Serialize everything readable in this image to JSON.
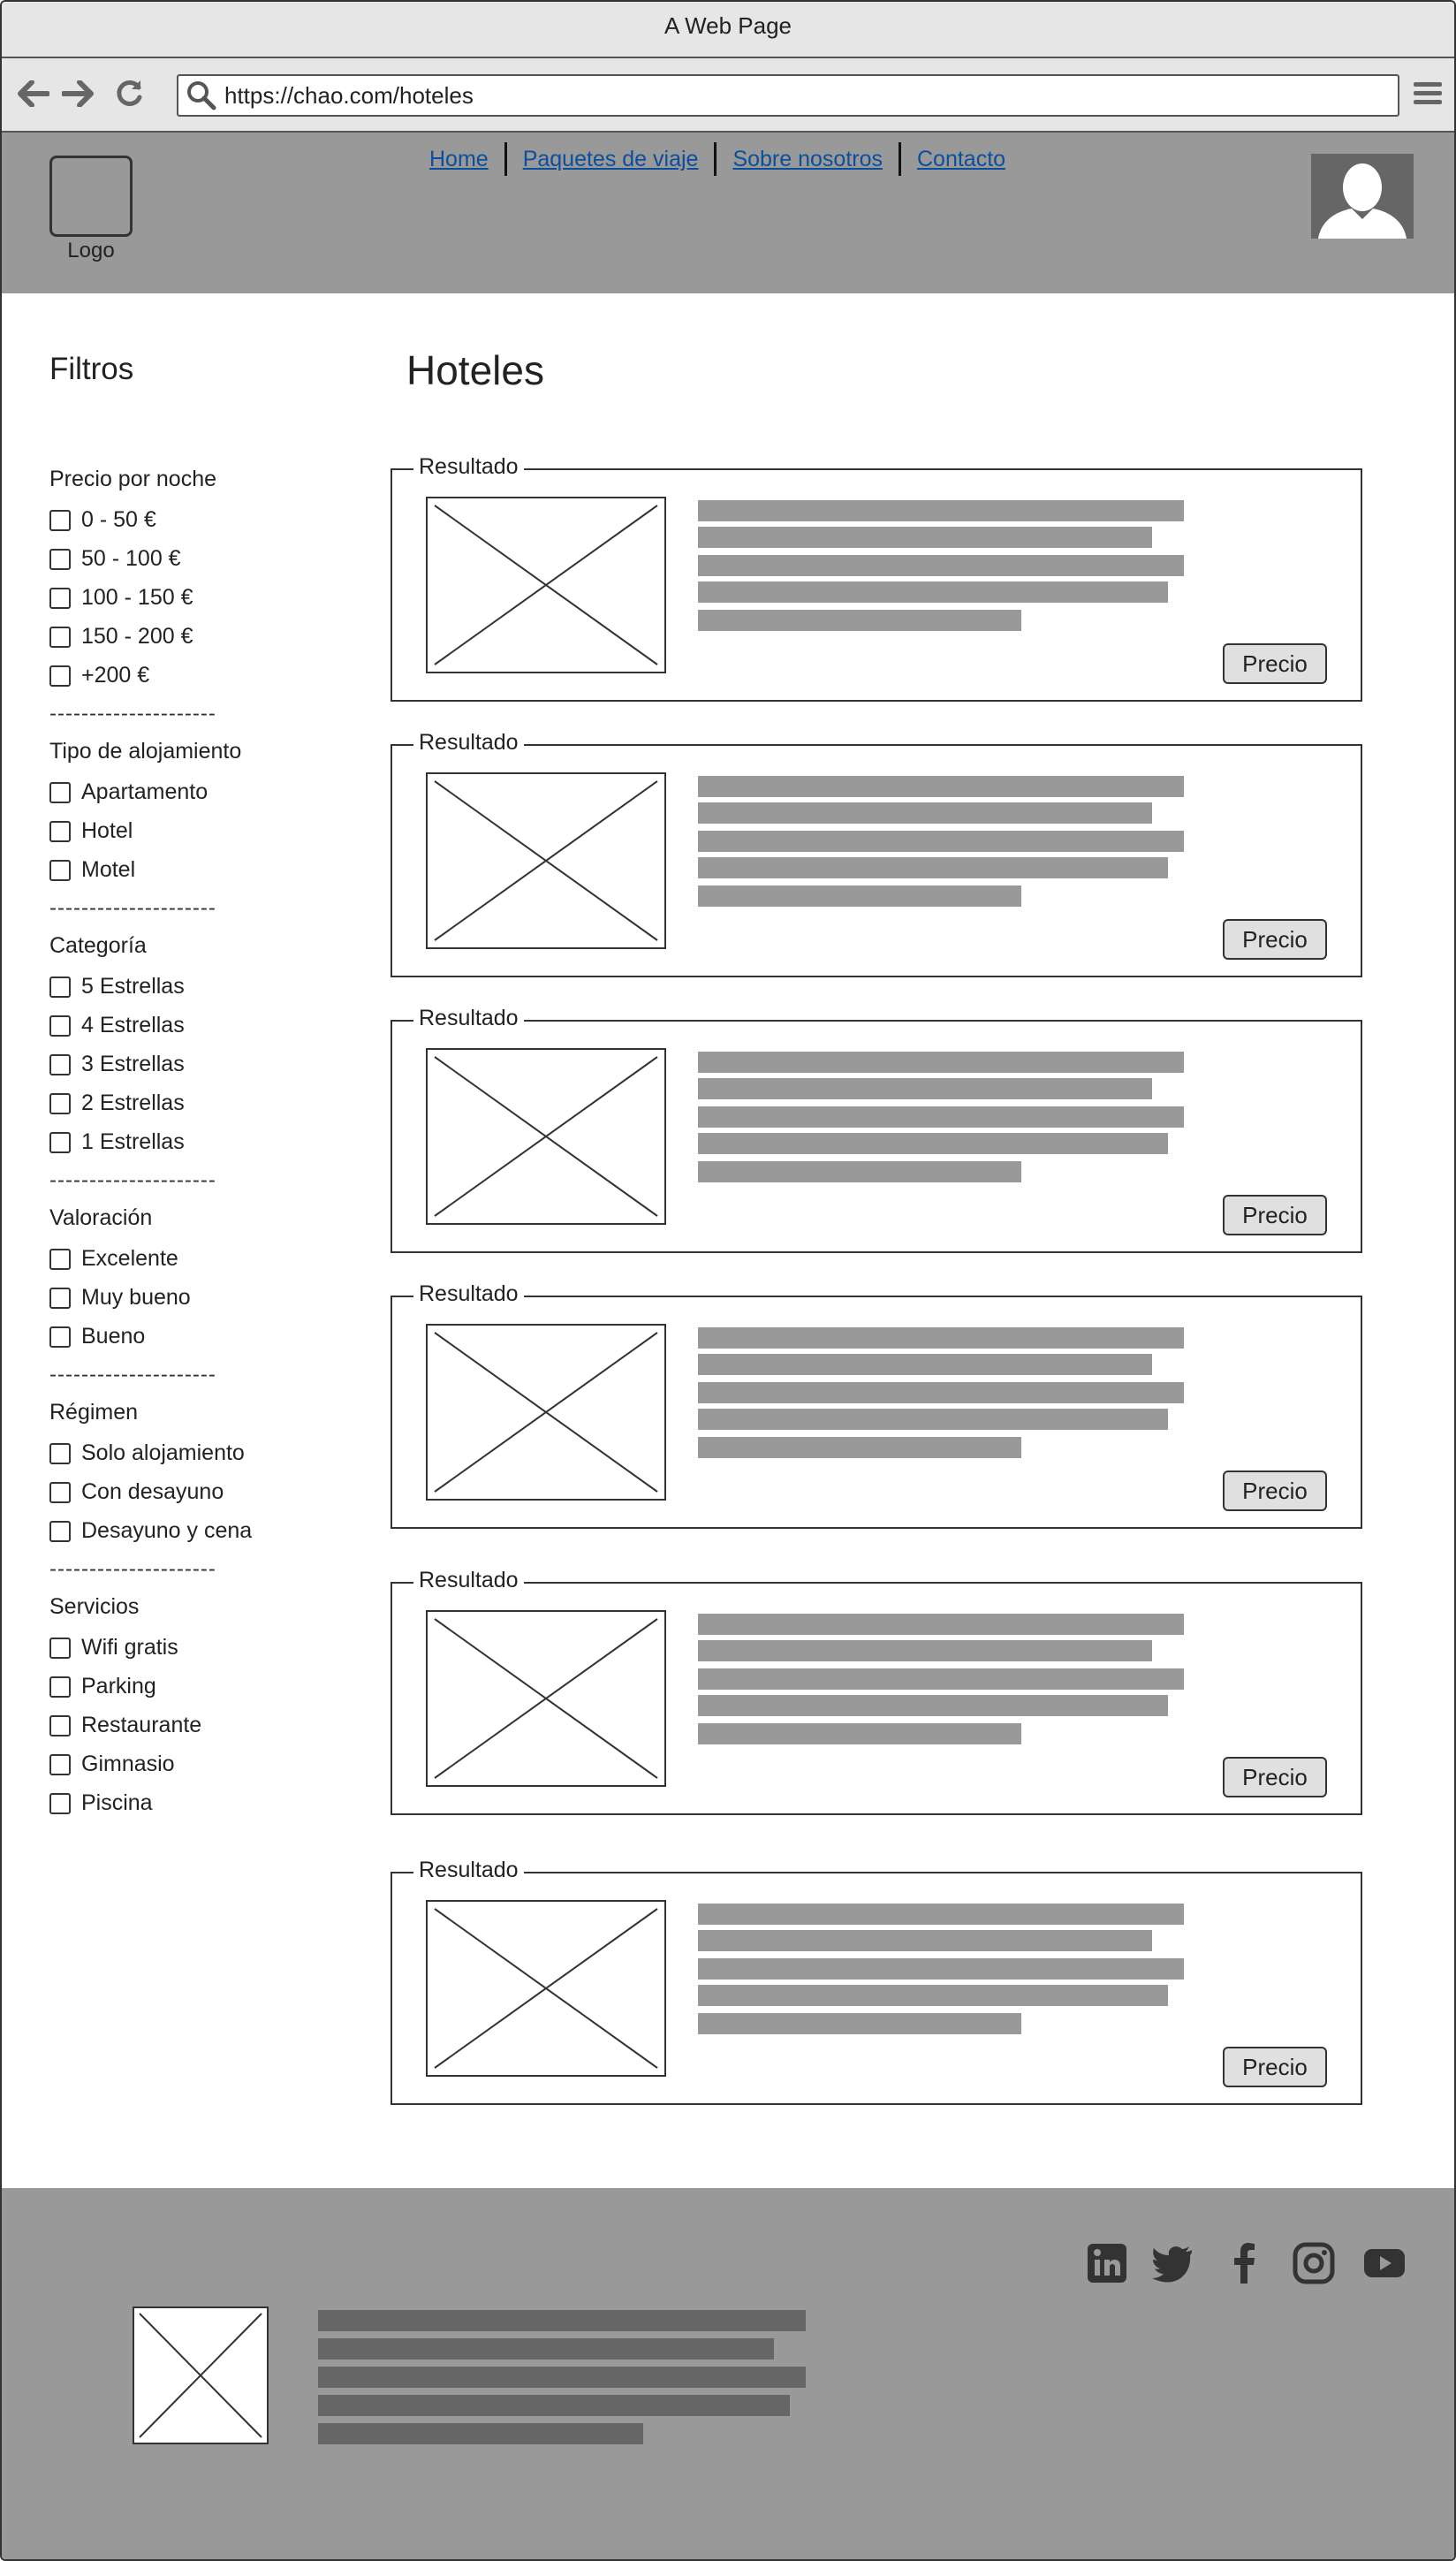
{
  "window": {
    "title": "A Web Page"
  },
  "browser": {
    "url": "https://chao.com/hoteles"
  },
  "header": {
    "logo_label": "Logo",
    "nav": [
      "Home",
      "Paquetes de viaje",
      "Sobre nosotros",
      "Contacto"
    ]
  },
  "sidebar": {
    "title": "Filtros",
    "groups": [
      {
        "title": "Precio por noche",
        "options": [
          "0 - 50 €",
          "50 - 100 €",
          "100 - 150 €",
          "150 - 200 €",
          "+200 €"
        ]
      },
      {
        "title": "Tipo de alojamiento",
        "options": [
          "Apartamento",
          "Hotel",
          "Motel"
        ]
      },
      {
        "title": "Categoría",
        "options": [
          "5 Estrellas",
          "4 Estrellas",
          "3 Estrellas",
          "2 Estrellas",
          "1 Estrellas"
        ]
      },
      {
        "title": "Valoración",
        "options": [
          "Excelente",
          "Muy bueno",
          "Bueno"
        ]
      },
      {
        "title": "Régimen",
        "options": [
          "Solo alojamiento",
          "Con desayuno",
          "Desayuno y cena"
        ]
      },
      {
        "title": "Servicios",
        "options": [
          "Wifi gratis",
          "Parking",
          "Restaurante",
          "Gimnasio",
          "Piscina"
        ]
      }
    ],
    "divider": "---------------------"
  },
  "main": {
    "title": "Hoteles",
    "results": [
      {
        "legend": "Resultado",
        "price_label": "Precio"
      },
      {
        "legend": "Resultado",
        "price_label": "Precio"
      },
      {
        "legend": "Resultado",
        "price_label": "Precio"
      },
      {
        "legend": "Resultado",
        "price_label": "Precio"
      },
      {
        "legend": "Resultado",
        "price_label": "Precio"
      },
      {
        "legend": "Resultado",
        "price_label": "Precio"
      }
    ]
  },
  "footer": {
    "social_icons": [
      "linkedin-icon",
      "twitter-icon",
      "facebook-icon",
      "instagram-icon",
      "youtube-icon"
    ]
  },
  "colors": {
    "header_bg": "#999999",
    "link": "#0b4f9c",
    "placeholder_bar": "#999999",
    "footer_bar": "#666666"
  }
}
